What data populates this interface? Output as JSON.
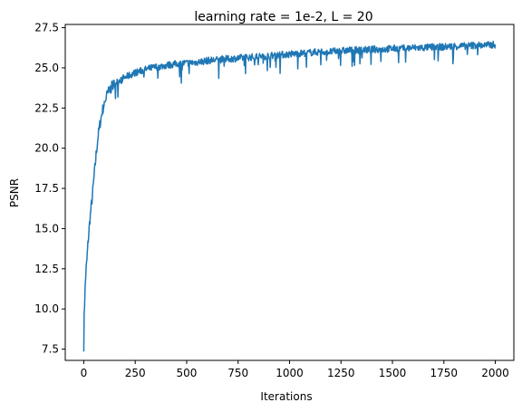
{
  "chart_data": {
    "type": "line",
    "title": "learning rate = 1e-2, L = 20",
    "xlabel": "Iterations",
    "ylabel": "PSNR",
    "xlim": [
      -90,
      2090
    ],
    "ylim": [
      6.8,
      27.7
    ],
    "xticks": [
      0,
      250,
      500,
      750,
      1000,
      1250,
      1500,
      1750,
      2000
    ],
    "xtick_labels": [
      "0",
      "250",
      "500",
      "750",
      "1000",
      "1250",
      "1500",
      "1750",
      "2000"
    ],
    "yticks": [
      7.5,
      10.0,
      12.5,
      15.0,
      17.5,
      20.0,
      22.5,
      25.0,
      27.5
    ],
    "ytick_labels": [
      "7.5",
      "10.0",
      "12.5",
      "15.0",
      "17.5",
      "20.0",
      "22.5",
      "25.0",
      "27.5"
    ],
    "grid": false,
    "series": [
      {
        "color": "#1f77b4",
        "x": [
          0,
          2,
          5,
          10,
          15,
          20,
          30,
          40,
          50,
          60,
          70,
          80,
          90,
          100,
          110,
          120,
          130,
          140,
          150,
          160,
          170,
          180,
          190,
          200,
          225,
          250,
          275,
          300,
          350,
          400,
          450,
          500,
          550,
          600,
          650,
          700,
          750,
          800,
          850,
          900,
          950,
          1000,
          1050,
          1100,
          1150,
          1200,
          1250,
          1300,
          1350,
          1400,
          1450,
          1500,
          1550,
          1600,
          1650,
          1700,
          1750,
          1800,
          1850,
          1900,
          1950,
          2000
        ],
        "y": [
          7.7,
          9.5,
          10.8,
          12.2,
          13.0,
          14.0,
          15.6,
          16.8,
          18.2,
          19.6,
          20.8,
          21.6,
          22.3,
          22.8,
          23.2,
          23.5,
          23.7,
          23.9,
          24.0,
          24.1,
          24.2,
          24.3,
          24.35,
          24.4,
          24.55,
          24.7,
          24.8,
          24.9,
          25.05,
          25.15,
          25.25,
          25.3,
          25.35,
          25.45,
          25.5,
          25.55,
          25.6,
          25.65,
          25.7,
          25.75,
          25.8,
          25.85,
          25.9,
          25.95,
          26.0,
          26.0,
          26.05,
          26.1,
          26.1,
          26.15,
          26.15,
          26.2,
          26.2,
          26.25,
          26.25,
          26.3,
          26.3,
          26.35,
          26.35,
          26.4,
          26.4,
          26.45
        ]
      }
    ]
  }
}
